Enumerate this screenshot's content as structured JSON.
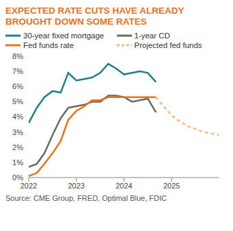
{
  "chart_data": {
    "type": "line",
    "title": "EXPECTED RATE CUTS HAVE ALREADY BROUGHT DOWN SOME RATES",
    "source": "Source: CME Group, FRED, Optimal Blue, FDIC",
    "x": [
      2022,
      2022.17,
      2022.33,
      2022.5,
      2022.67,
      2022.83,
      2023,
      2023.17,
      2023.33,
      2023.5,
      2023.67,
      2023.83,
      2024,
      2024.17,
      2024.33,
      2024.5,
      2024.67,
      2024.83,
      2025,
      2025.17,
      2025.33,
      2025.5,
      2025.67,
      2025.83,
      2026
    ],
    "xlim": [
      2022,
      2026
    ],
    "xticks": [
      2022,
      2023,
      2024,
      2025
    ],
    "ylim": [
      0,
      8
    ],
    "yticks": [
      {
        "value": 0,
        "label": "0%"
      },
      {
        "value": 1,
        "label": "1%"
      },
      {
        "value": 2,
        "label": "2%"
      },
      {
        "value": 3,
        "label": "3%"
      },
      {
        "value": 4,
        "label": "4%"
      },
      {
        "value": 5,
        "label": "5%"
      },
      {
        "value": 6,
        "label": "6%"
      },
      {
        "value": 7,
        "label": "7%"
      },
      {
        "value": 8,
        "label": "8%"
      }
    ],
    "grid": false,
    "series": [
      {
        "name": "30-year fixed mortgage",
        "color": "#1f7f85",
        "line_style": "solid",
        "values": [
          3.6,
          4.6,
          5.3,
          5.7,
          5.6,
          6.9,
          6.4,
          6.5,
          6.6,
          6.9,
          7.5,
          7.2,
          6.8,
          6.9,
          7.0,
          6.9,
          6.3,
          null,
          null,
          null,
          null,
          null,
          null,
          null,
          null
        ]
      },
      {
        "name": "1-year CD",
        "color": "#6b6a5e",
        "line_style": "solid",
        "values": [
          0.7,
          0.9,
          1.6,
          2.8,
          3.9,
          4.6,
          4.7,
          4.8,
          5.0,
          5.0,
          5.4,
          5.4,
          5.3,
          5.0,
          5.1,
          5.2,
          4.3,
          null,
          null,
          null,
          null,
          null,
          null,
          null,
          null
        ]
      },
      {
        "name": "Fed funds rate",
        "color": "#e8731e",
        "line_style": "solid",
        "values": [
          0.1,
          0.3,
          0.9,
          1.6,
          2.4,
          3.8,
          4.4,
          4.7,
          5.1,
          5.1,
          5.3,
          5.3,
          5.3,
          5.3,
          5.3,
          5.3,
          5.3,
          null,
          null,
          null,
          null,
          null,
          null,
          null,
          null
        ]
      },
      {
        "name": "Projected fed funds",
        "color": "#f5b98a",
        "line_style": "dashed",
        "values": [
          null,
          null,
          null,
          null,
          null,
          null,
          null,
          null,
          null,
          null,
          null,
          null,
          null,
          null,
          null,
          null,
          5.3,
          4.7,
          4.1,
          3.7,
          3.4,
          3.2,
          3.0,
          2.9,
          2.8
        ]
      }
    ]
  }
}
